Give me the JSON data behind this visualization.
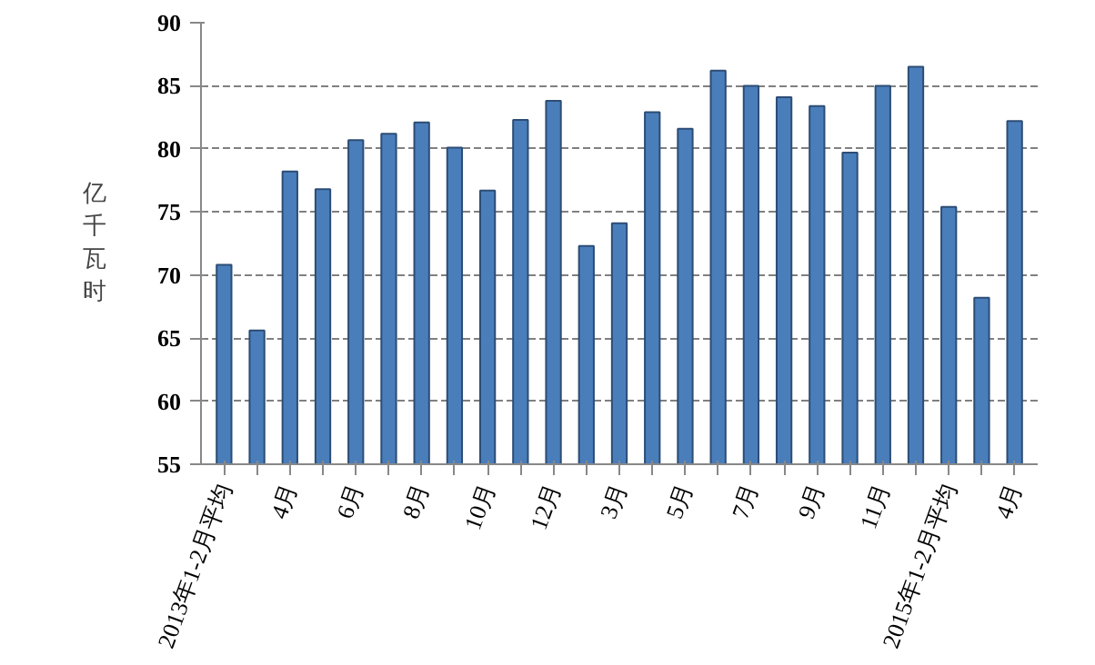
{
  "chart_data": {
    "type": "bar",
    "ylabel": "亿千瓦时",
    "categories": [
      "2013年1-2月平均",
      null,
      "4月",
      null,
      "6月",
      null,
      "8月",
      null,
      "10月",
      null,
      "12月",
      null,
      "3月",
      null,
      "5月",
      null,
      "7月",
      null,
      "9月",
      null,
      "11月",
      null,
      "2015年1-2月平均",
      null,
      "4月"
    ],
    "values": [
      70.8,
      65.6,
      78.2,
      76.8,
      80.7,
      81.2,
      82.1,
      80.1,
      76.7,
      82.3,
      83.8,
      72.3,
      74.1,
      82.9,
      81.6,
      86.2,
      85.0,
      84.1,
      83.4,
      79.7,
      85.0,
      86.5,
      75.4,
      68.2,
      82.2
    ],
    "color": "#4a7ebb",
    "ylim": [
      55,
      90
    ],
    "yticks": [
      55,
      60,
      65,
      70,
      75,
      80,
      85,
      90
    ],
    "grid": "y"
  }
}
